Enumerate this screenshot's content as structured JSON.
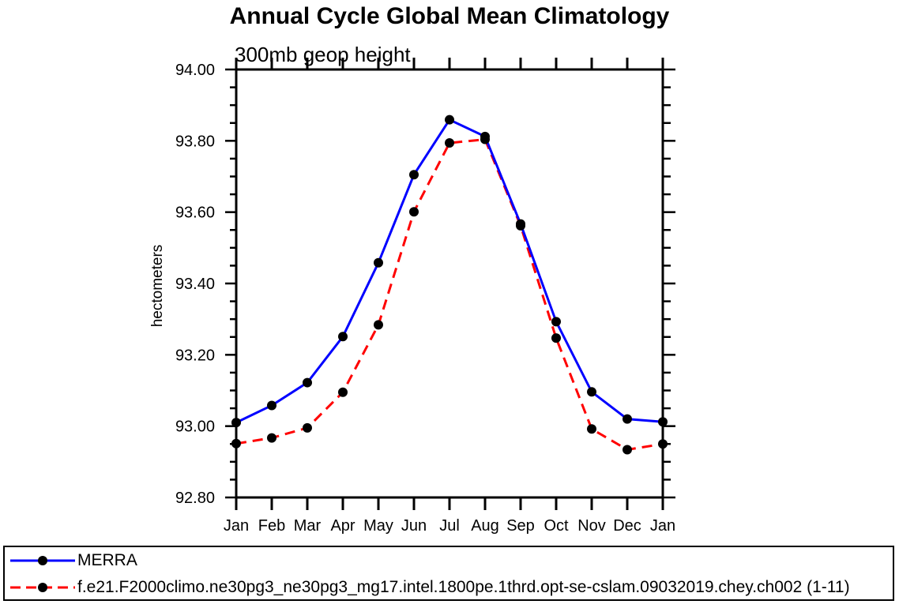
{
  "chart_data": {
    "type": "line",
    "title": "Annual Cycle Global Mean Climatology",
    "subtitle": "300mb geop height",
    "ylabel": "hectometers",
    "xlabel": "",
    "categories": [
      "Jan",
      "Feb",
      "Mar",
      "Apr",
      "May",
      "Jun",
      "Jul",
      "Aug",
      "Sep",
      "Oct",
      "Nov",
      "Dec",
      "Jan"
    ],
    "ylim": [
      92.8,
      94.0
    ],
    "yticks": [
      {
        "label": "94.00",
        "value": 94.0
      },
      {
        "label": "93.80",
        "value": 93.8
      },
      {
        "label": "93.60",
        "value": 93.6
      },
      {
        "label": "93.40",
        "value": 93.4
      },
      {
        "label": "93.20",
        "value": 93.2
      },
      {
        "label": "93.00",
        "value": 93.0
      },
      {
        "label": "92.80",
        "value": 92.8
      }
    ],
    "ytick_minor_interval": 0.05,
    "grid": "off",
    "legend_position": "bottom",
    "frame_color": "#000000",
    "marker": {
      "shape": "circle",
      "color": "#000000"
    },
    "series": [
      {
        "name": "MERRA",
        "color": "#0000ff",
        "style": "solid",
        "values": [
          93.01,
          93.058,
          93.122,
          93.251,
          93.458,
          93.705,
          93.859,
          93.812,
          93.567,
          93.293,
          93.096,
          93.02,
          93.012
        ]
      },
      {
        "name": "f.e21.F2000climo.ne30pg3_ne30pg3_mg17.intel.1800pe.1thrd.opt-se-cslam.09032019.chey.ch002 (1-11)",
        "color": "#ff0000",
        "style": "dashed",
        "values": [
          92.951,
          92.967,
          92.995,
          93.095,
          93.284,
          93.601,
          93.794,
          93.804,
          93.562,
          93.247,
          92.992,
          92.934,
          92.95
        ]
      }
    ]
  }
}
